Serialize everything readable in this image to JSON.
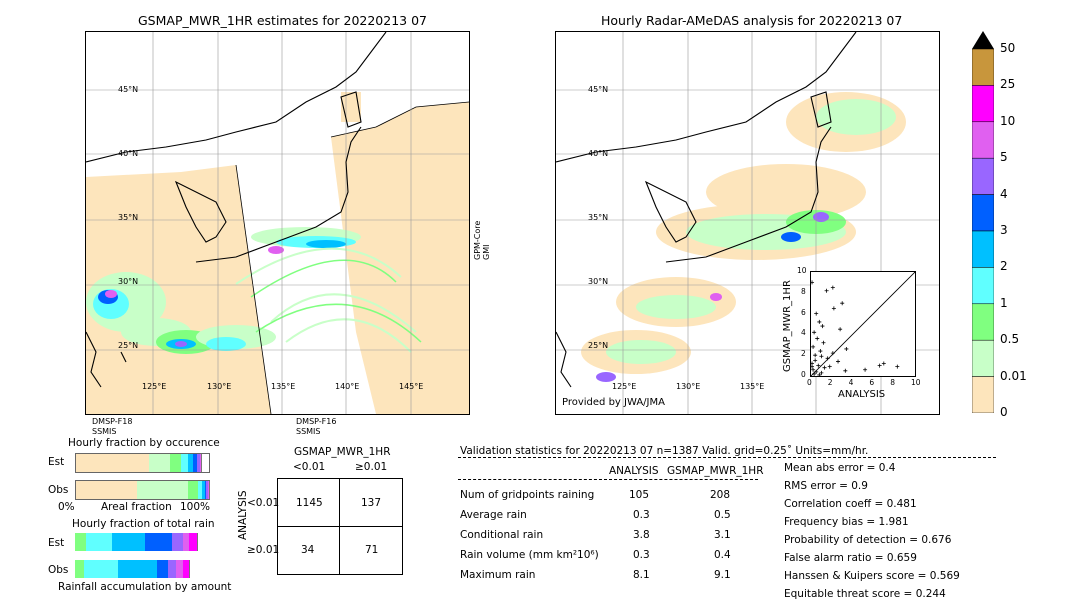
{
  "left_map": {
    "title": "GSMAP_MWR_1HR estimates for 20220213 07",
    "lat_labels": [
      "45°N",
      "40°N",
      "35°N",
      "30°N",
      "25°N"
    ],
    "lon_labels": [
      "125°E",
      "130°E",
      "135°E",
      "140°E",
      "145°E"
    ],
    "side_label": "GPM-Core\nGMI",
    "sensor_left": "DMSP-F18\nSSMIS",
    "sensor_right": "DMSP-F16\nSSMIS"
  },
  "right_map": {
    "title": "Hourly Radar-AMeDAS analysis for 20220213 07",
    "lat_labels": [
      "45°N",
      "40°N",
      "35°N",
      "30°N",
      "25°N"
    ],
    "lon_labels": [
      "125°E",
      "130°E",
      "135°E"
    ],
    "credit": "Provided by JWA/JMA"
  },
  "colorbar": {
    "labels": [
      "50",
      "25",
      "10",
      "5",
      "4",
      "3",
      "2",
      "1",
      "0.5",
      "0.01",
      "0"
    ],
    "colors": [
      "#c8963c",
      "#ff00ff",
      "#e060f0",
      "#9966ff",
      "#0060ff",
      "#00c0ff",
      "#60ffff",
      "#80ff80",
      "#c8ffc8",
      "#fde5bc"
    ]
  },
  "chart_data": [
    {
      "type": "scatter",
      "xlabel": "ANALYSIS",
      "ylabel": "GSMAP_MWR_1HR",
      "xlim": [
        0,
        10
      ],
      "ylim": [
        0,
        10
      ],
      "ticks": [
        "0",
        "2",
        "4",
        "6",
        "8",
        "10"
      ],
      "points": [
        [
          0.1,
          9.0
        ],
        [
          1.5,
          8.2
        ],
        [
          2.1,
          8.5
        ],
        [
          3.0,
          7.0
        ],
        [
          0.5,
          6.0
        ],
        [
          2.2,
          6.5
        ],
        [
          0.8,
          5.2
        ],
        [
          1.1,
          4.8
        ],
        [
          0.3,
          4.2
        ],
        [
          2.8,
          4.5
        ],
        [
          0.6,
          3.6
        ],
        [
          1.2,
          3.2
        ],
        [
          0.2,
          2.8
        ],
        [
          0.9,
          2.4
        ],
        [
          2.1,
          2.2
        ],
        [
          3.4,
          2.6
        ],
        [
          0.4,
          2.0
        ],
        [
          1.6,
          1.7
        ],
        [
          2.6,
          1.4
        ],
        [
          0.1,
          1.2
        ],
        [
          0.7,
          1.0
        ],
        [
          1.3,
          0.8
        ],
        [
          0.2,
          0.6
        ],
        [
          0.5,
          0.4
        ],
        [
          1.0,
          0.3
        ],
        [
          0.3,
          0.2
        ],
        [
          0.8,
          0.1
        ],
        [
          3.3,
          0.5
        ],
        [
          5.2,
          0.6
        ],
        [
          7.0,
          1.2
        ],
        [
          6.6,
          1.0
        ],
        [
          8.3,
          0.9
        ],
        [
          0.1,
          0.9
        ],
        [
          0.4,
          1.5
        ],
        [
          1.8,
          0.9
        ],
        [
          1.0,
          1.9
        ]
      ]
    },
    {
      "type": "bar",
      "title": "Hourly fraction by occurence",
      "categories": [
        "Est",
        "Obs"
      ],
      "xlabel": "Areal fraction",
      "xticks": [
        "0%",
        "100%"
      ],
      "series": [
        {
          "name": "Est",
          "fractions": [
            0.55,
            0.16,
            0.08,
            0.05,
            0.04,
            0.03,
            0.02,
            0.01
          ]
        },
        {
          "name": "Obs",
          "fractions": [
            0.46,
            0.38,
            0.08,
            0.03,
            0.02,
            0.01,
            0.01,
            0.01
          ]
        }
      ]
    },
    {
      "type": "bar",
      "title": "Hourly fraction of total rain",
      "categories": [
        "Est",
        "Obs"
      ],
      "xlabel": "Rainfall accumulation by amount",
      "series": [
        {
          "name": "Est",
          "fractions": [
            0.08,
            0.2,
            0.25,
            0.2,
            0.08,
            0.05,
            0.06
          ]
        },
        {
          "name": "Obs",
          "fractions": [
            0.07,
            0.25,
            0.3,
            0.08,
            0.06,
            0.05,
            0.05
          ]
        }
      ]
    },
    {
      "type": "table",
      "title": "GSMAP_MWR_1HR",
      "col_headers": [
        "<0.01",
        "≥0.01"
      ],
      "row_headers": [
        "<0.01",
        "≥0.01"
      ],
      "side_label": "ANALYSIS",
      "cells": [
        [
          "1145",
          "137"
        ],
        [
          "34",
          "71"
        ]
      ]
    }
  ],
  "validation": {
    "header": "Validation statistics for 20220213 07  n=1387 Valid. grid=0.25˚ Units=mm/hr.",
    "col_analysis": "ANALYSIS",
    "col_gsmap": "GSMAP_MWR_1HR",
    "rows": [
      {
        "label": "Num of gridpoints raining",
        "a": "105",
        "g": "208"
      },
      {
        "label": "Average rain",
        "a": "0.3",
        "g": "0.5"
      },
      {
        "label": "Conditional rain",
        "a": "3.8",
        "g": "3.1"
      },
      {
        "label": "Rain volume (mm km²10⁶)",
        "a": "0.3",
        "g": "0.4"
      },
      {
        "label": "Maximum rain",
        "a": "8.1",
        "g": "9.1"
      }
    ],
    "scores": [
      "Mean abs error =    0.4",
      "RMS error =    0.9",
      "Correlation coeff =  0.481",
      "Frequency bias =  1.981",
      "Probability of detection =  0.676",
      "False alarm ratio =  0.659",
      "Hanssen & Kuipers score =  0.569",
      "Equitable threat score =  0.244"
    ]
  }
}
